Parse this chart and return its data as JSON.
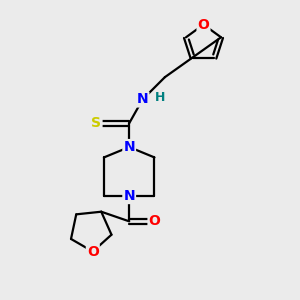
{
  "background_color": "#ebebeb",
  "atom_colors": {
    "C": "#000000",
    "N": "#0000ff",
    "O": "#ff0000",
    "S": "#cccc00",
    "H": "#008080"
  },
  "bond_color": "#000000",
  "bond_width": 1.6,
  "font_size_atoms": 10,
  "font_size_H": 9,
  "xlim": [
    0,
    10
  ],
  "ylim": [
    0,
    10
  ]
}
